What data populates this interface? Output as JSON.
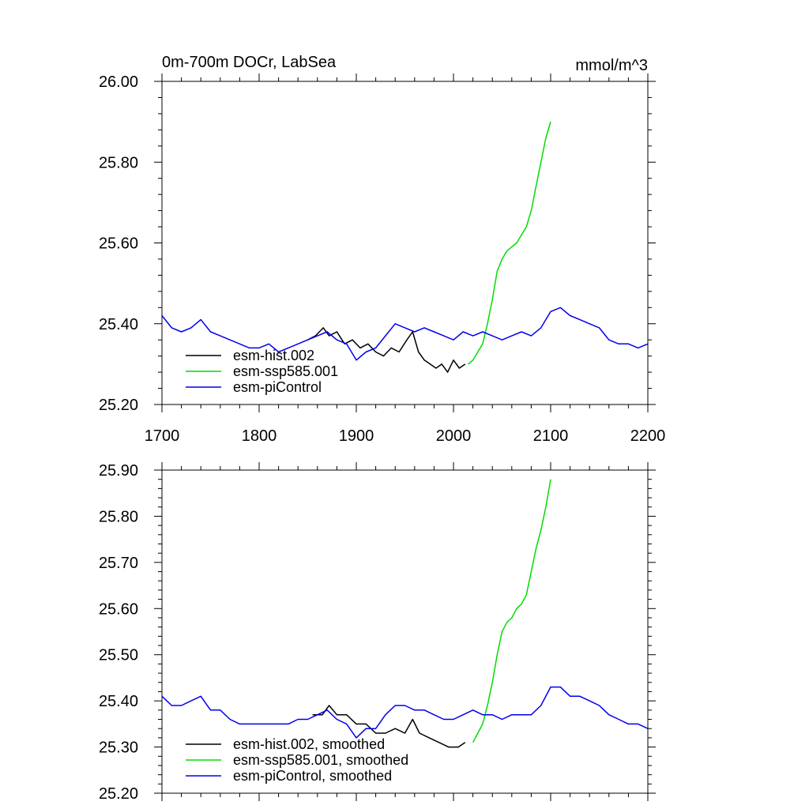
{
  "chart_data": [
    {
      "type": "line",
      "title": "0m-700m DOCr, LabSea",
      "units": "mmol/m^3",
      "xlim": [
        1700,
        2200
      ],
      "ylim": [
        25.2,
        26.0
      ],
      "x_ticks": [
        1700,
        1800,
        1900,
        2000,
        2100,
        2200
      ],
      "x_tick_labels": [
        "1700",
        "1800",
        "1900",
        "2000",
        "2100",
        "2200"
      ],
      "y_ticks": [
        25.2,
        25.4,
        25.6,
        25.8,
        26.0
      ],
      "y_tick_labels": [
        "25.20",
        "25.40",
        "25.60",
        "25.80",
        "26.00"
      ],
      "legend_position": "bottom-left",
      "series": [
        {
          "name": "esm-hist.002",
          "color": "#000000",
          "x": [
            1850,
            1858,
            1866,
            1872,
            1880,
            1888,
            1896,
            1904,
            1912,
            1920,
            1928,
            1936,
            1944,
            1952,
            1958,
            1964,
            1970,
            1976,
            1982,
            1988,
            1994,
            2000,
            2006,
            2012
          ],
          "y": [
            25.36,
            25.37,
            25.39,
            25.37,
            25.38,
            25.35,
            25.36,
            25.34,
            25.35,
            25.33,
            25.32,
            25.34,
            25.33,
            25.36,
            25.38,
            25.33,
            25.31,
            25.3,
            25.29,
            25.3,
            25.28,
            25.31,
            25.29,
            25.3
          ]
        },
        {
          "name": "esm-ssp585.001",
          "color": "#00dd00",
          "x": [
            2015,
            2020,
            2025,
            2030,
            2035,
            2040,
            2045,
            2050,
            2055,
            2060,
            2065,
            2070,
            2075,
            2080,
            2085,
            2090,
            2095,
            2100
          ],
          "y": [
            25.3,
            25.31,
            25.33,
            25.35,
            25.4,
            25.46,
            25.53,
            25.56,
            25.58,
            25.59,
            25.6,
            25.62,
            25.64,
            25.68,
            25.74,
            25.8,
            25.86,
            25.9
          ]
        },
        {
          "name": "esm-piControl",
          "color": "#0000ee",
          "x": [
            1700,
            1710,
            1720,
            1730,
            1740,
            1750,
            1760,
            1770,
            1780,
            1790,
            1800,
            1810,
            1820,
            1830,
            1840,
            1850,
            1860,
            1870,
            1880,
            1890,
            1900,
            1910,
            1920,
            1930,
            1940,
            1950,
            1960,
            1970,
            1980,
            1990,
            2000,
            2010,
            2020,
            2030,
            2040,
            2050,
            2060,
            2070,
            2080,
            2090,
            2100,
            2110,
            2120,
            2130,
            2140,
            2150,
            2160,
            2170,
            2180,
            2190,
            2200
          ],
          "y": [
            25.42,
            25.39,
            25.38,
            25.39,
            25.41,
            25.38,
            25.37,
            25.36,
            25.35,
            25.34,
            25.34,
            25.35,
            25.33,
            25.34,
            25.35,
            25.36,
            25.37,
            25.38,
            25.36,
            25.35,
            25.31,
            25.33,
            25.34,
            25.37,
            25.4,
            25.39,
            25.38,
            25.39,
            25.38,
            25.37,
            25.36,
            25.38,
            25.37,
            25.38,
            25.37,
            25.36,
            25.37,
            25.38,
            25.37,
            25.39,
            25.43,
            25.44,
            25.42,
            25.41,
            25.4,
            25.39,
            25.36,
            25.35,
            25.35,
            25.34,
            25.35
          ]
        }
      ]
    },
    {
      "type": "line",
      "xlim": [
        1700,
        2200
      ],
      "ylim": [
        25.2,
        25.9
      ],
      "x_ticks": [
        1700,
        1800,
        1900,
        2000,
        2100,
        2200
      ],
      "y_ticks": [
        25.2,
        25.3,
        25.4,
        25.5,
        25.6,
        25.7,
        25.8,
        25.9
      ],
      "y_tick_labels": [
        "25.20",
        "25.30",
        "25.40",
        "25.50",
        "25.60",
        "25.70",
        "25.80",
        "25.90"
      ],
      "legend_position": "bottom-left",
      "series": [
        {
          "name": "esm-hist.002, smoothed",
          "color": "#000000",
          "x": [
            1855,
            1865,
            1872,
            1880,
            1890,
            1900,
            1910,
            1920,
            1930,
            1940,
            1950,
            1958,
            1965,
            1975,
            1985,
            1995,
            2005,
            2012
          ],
          "y": [
            25.37,
            25.37,
            25.39,
            25.37,
            25.37,
            25.35,
            25.35,
            25.33,
            25.33,
            25.34,
            25.33,
            25.36,
            25.33,
            25.32,
            25.31,
            25.3,
            25.3,
            25.31
          ]
        },
        {
          "name": "esm-ssp585.001, smoothed",
          "color": "#00dd00",
          "x": [
            2020,
            2025,
            2030,
            2035,
            2040,
            2045,
            2050,
            2055,
            2060,
            2065,
            2070,
            2075,
            2080,
            2085,
            2090,
            2095,
            2100
          ],
          "y": [
            25.31,
            25.33,
            25.35,
            25.39,
            25.44,
            25.5,
            25.55,
            25.57,
            25.58,
            25.6,
            25.61,
            25.63,
            25.68,
            25.73,
            25.77,
            25.82,
            25.88
          ]
        },
        {
          "name": "esm-piControl, smoothed",
          "color": "#0000ee",
          "x": [
            1700,
            1710,
            1720,
            1730,
            1740,
            1750,
            1760,
            1770,
            1780,
            1790,
            1800,
            1810,
            1820,
            1830,
            1840,
            1850,
            1860,
            1870,
            1880,
            1890,
            1900,
            1910,
            1920,
            1930,
            1940,
            1950,
            1960,
            1970,
            1980,
            1990,
            2000,
            2010,
            2020,
            2030,
            2040,
            2050,
            2060,
            2070,
            2080,
            2090,
            2100,
            2110,
            2120,
            2130,
            2140,
            2150,
            2160,
            2170,
            2180,
            2190,
            2200
          ],
          "y": [
            25.41,
            25.39,
            25.39,
            25.4,
            25.41,
            25.38,
            25.38,
            25.36,
            25.35,
            25.35,
            25.35,
            25.35,
            25.35,
            25.35,
            25.36,
            25.36,
            25.37,
            25.38,
            25.36,
            25.35,
            25.32,
            25.34,
            25.34,
            25.37,
            25.39,
            25.39,
            25.38,
            25.38,
            25.37,
            25.36,
            25.36,
            25.37,
            25.38,
            25.37,
            25.37,
            25.36,
            25.37,
            25.37,
            25.37,
            25.39,
            25.43,
            25.43,
            25.41,
            25.41,
            25.4,
            25.39,
            25.37,
            25.36,
            25.35,
            25.35,
            25.34
          ]
        }
      ]
    }
  ]
}
